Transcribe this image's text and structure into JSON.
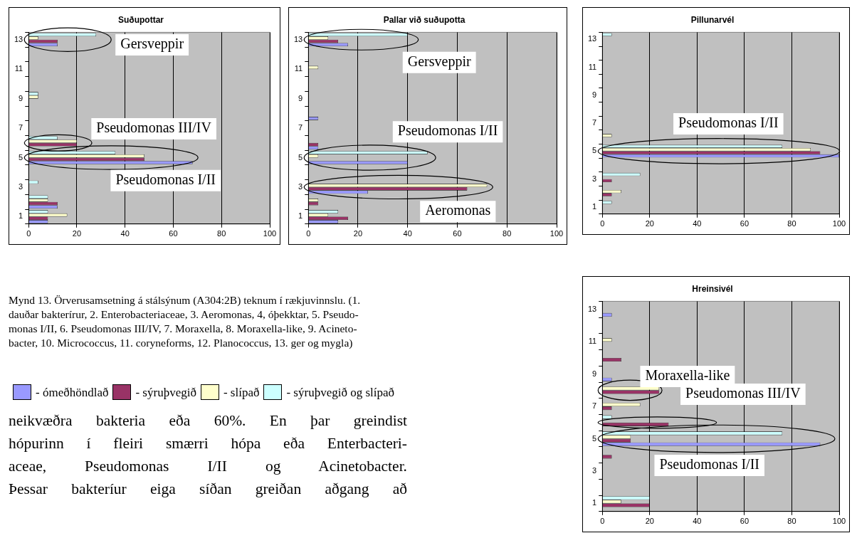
{
  "chart_data": [
    {
      "type": "bar",
      "orientation": "horizontal",
      "title": "Suðupottar",
      "categories": [
        "13",
        null,
        "11",
        null,
        "9",
        null,
        "7",
        null,
        "5",
        null,
        "3",
        null,
        "1"
      ],
      "series": [
        {
          "name": "- ómeðhöndlað",
          "color": "#9999ff",
          "values": [
            12,
            0,
            0,
            0,
            0,
            0,
            0,
            0,
            68,
            0,
            0,
            12,
            8
          ]
        },
        {
          "name": "- sýruþvegið",
          "color": "#993366",
          "values": [
            12,
            0,
            0,
            0,
            0,
            0,
            0,
            20,
            48,
            0,
            0,
            12,
            8
          ]
        },
        {
          "name": "- slípað",
          "color": "#ffffcc",
          "values": [
            4,
            0,
            0,
            0,
            4,
            0,
            0,
            20,
            48,
            0,
            0,
            8,
            16
          ]
        },
        {
          "name": "- sýruþvegið og slípað",
          "color": "#ccffff",
          "values": [
            28,
            0,
            0,
            0,
            4,
            0,
            0,
            12,
            36,
            0,
            4,
            8,
            8
          ]
        }
      ],
      "xlim": [
        0,
        100
      ],
      "xticks": [
        0,
        20,
        40,
        60,
        80,
        100
      ],
      "grid": "x",
      "legend": "bottom",
      "annotations": [
        "Gersveppir",
        "Pseudomonas III/IV",
        "Pseudomonas I/II",
        "Mynd 13. Örverusamsetning á stálsýnum (A304:2B) teknum í rækjuvinnslu. (1.\ndauðar bakterírur, 2. Enterobacteriaceae, 3.  Aeromonas, 4, óþekktar, 5. Pseudo-\nmonas I/II, 6. Pseudomonas III/IV, 7. Moraxella, 8. Moraxella-like, 9. Acineto-\nbacter, 10. Micrococcus, 11. coryneforms, 12. Planococcus, 13. ger og mygla)",
        "neikvæðra bakteria eða 60%. En þar greindist\nhópurinn í fleiri smærri hópa eða Enterbacteri-\naceae, Pseudomonas I/II og Acinetobacter.\nÞessar bakteríur eiga síðan greiðan aðgang að"
      ]
    },
    {
      "type": "bar",
      "orientation": "horizontal",
      "title": "Pallar við suðupotta",
      "categories": [
        "13",
        null,
        "11",
        null,
        "9",
        null,
        "7",
        null,
        "5",
        null,
        "3",
        null,
        "1"
      ],
      "series": [
        {
          "color": "#9999ff",
          "values": [
            16,
            0,
            0,
            0,
            0,
            4,
            0,
            4,
            40,
            0,
            24,
            0,
            12
          ]
        },
        {
          "color": "#993366",
          "values": [
            12,
            0,
            0,
            0,
            0,
            0,
            0,
            4,
            0,
            0,
            64,
            4,
            16
          ]
        },
        {
          "color": "#ffffcc",
          "values": [
            8,
            0,
            4,
            0,
            0,
            0,
            0,
            0,
            4,
            0,
            72,
            4,
            8
          ]
        },
        {
          "color": "#ccffff",
          "values": [
            40,
            0,
            0,
            0,
            0,
            0,
            0,
            0,
            48,
            0,
            0,
            0,
            12
          ]
        }
      ],
      "xlim": [
        0,
        100
      ],
      "xticks": [
        0,
        20,
        40,
        60,
        80,
        100
      ],
      "grid": "x",
      "annotations": [
        "Gersveppir",
        "Pseudomonas I/II",
        "Aeromonas"
      ]
    },
    {
      "type": "bar",
      "orientation": "horizontal",
      "title": "Pillunarvél",
      "categories": [
        "13",
        null,
        "11",
        null,
        "9",
        null,
        "7",
        null,
        "5",
        null,
        "3",
        null,
        "1"
      ],
      "series": [
        {
          "color": "#9999ff",
          "values": [
            0,
            0,
            0,
            0,
            0,
            0,
            0,
            0,
            100,
            0,
            0,
            0,
            0
          ]
        },
        {
          "color": "#993366",
          "values": [
            0,
            0,
            0,
            0,
            0,
            0,
            0,
            0,
            92,
            0,
            4,
            4,
            0
          ]
        },
        {
          "color": "#ffffcc",
          "values": [
            0,
            0,
            0,
            0,
            0,
            0,
            0,
            4,
            88,
            0,
            0,
            8,
            0
          ]
        },
        {
          "color": "#ccffff",
          "values": [
            4,
            0,
            0,
            0,
            0,
            0,
            0,
            0,
            76,
            0,
            16,
            0,
            4
          ]
        }
      ],
      "xlim": [
        0,
        100
      ],
      "xticks": [
        0,
        20,
        40,
        60,
        80,
        100
      ],
      "grid": "x",
      "annotations": [
        "Pseudomonas I/II"
      ]
    },
    {
      "type": "bar",
      "orientation": "horizontal",
      "title": "Hreinsivél",
      "categories": [
        "13",
        null,
        "11",
        null,
        "9",
        null,
        "7",
        null,
        "5",
        null,
        "3",
        null,
        "1"
      ],
      "series": [
        {
          "color": "#9999ff",
          "values": [
            4,
            0,
            0,
            0,
            4,
            0,
            0,
            0,
            92,
            0,
            0,
            0,
            0
          ]
        },
        {
          "color": "#993366",
          "values": [
            0,
            0,
            0,
            8,
            0,
            24,
            4,
            28,
            12,
            4,
            0,
            0,
            20
          ]
        },
        {
          "color": "#ffffcc",
          "values": [
            0,
            0,
            4,
            0,
            0,
            24,
            16,
            0,
            12,
            0,
            0,
            0,
            8
          ]
        },
        {
          "color": "#ccffff",
          "values": [
            0,
            0,
            0,
            0,
            0,
            0,
            0,
            4,
            76,
            0,
            0,
            0,
            20
          ]
        }
      ],
      "xlim": [
        0,
        100
      ],
      "xticks": [
        0,
        20,
        40,
        60,
        80,
        100
      ],
      "grid": "x",
      "annotations": [
        "Moraxella-like",
        "Pseudomonas III/IV",
        "Pseudomonas I/II"
      ]
    }
  ]
}
